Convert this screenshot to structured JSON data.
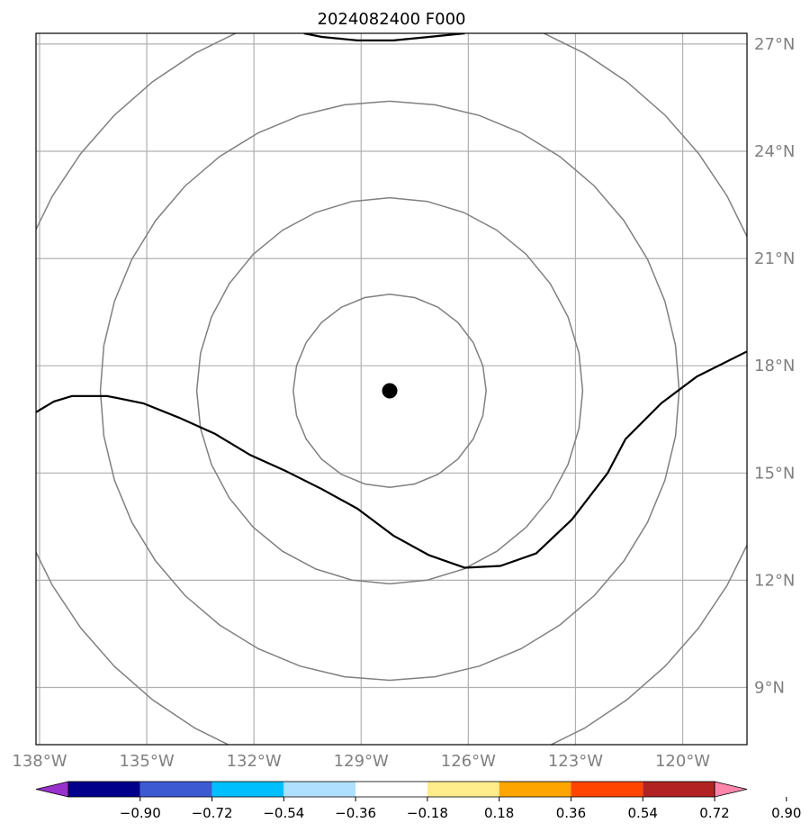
{
  "chart_data": {
    "type": "map",
    "title": "2024082400 F000",
    "lon_ticks": [
      {
        "value": -138,
        "label": "138°W"
      },
      {
        "value": -135,
        "label": "135°W"
      },
      {
        "value": -132,
        "label": "132°W"
      },
      {
        "value": -129,
        "label": "129°W"
      },
      {
        "value": -126,
        "label": "126°W"
      },
      {
        "value": -123,
        "label": "123°W"
      },
      {
        "value": -120,
        "label": "120°W"
      }
    ],
    "lat_ticks": [
      {
        "value": 27,
        "label": "27°N"
      },
      {
        "value": 24,
        "label": "24°N"
      },
      {
        "value": 21,
        "label": "21°N"
      },
      {
        "value": 18,
        "label": "18°N"
      },
      {
        "value": 15,
        "label": "15°N"
      },
      {
        "value": 12,
        "label": "12°N"
      },
      {
        "value": 9,
        "label": "9°N"
      }
    ],
    "lon_range": [
      -138.1,
      -118.2
    ],
    "lat_range": [
      7.4,
      27.3
    ],
    "grid": true,
    "center": {
      "lon": -128.2,
      "lat": 17.3
    },
    "range_rings": [
      {
        "radius_deg": 2.7
      },
      {
        "radius_deg": 5.4
      },
      {
        "radius_deg": 8.1
      },
      {
        "radius_deg": 10.9
      }
    ],
    "track": [
      [
        -138.1,
        16.7
      ],
      [
        -137.6,
        17.0
      ],
      [
        -137.1,
        17.15
      ],
      [
        -136.1,
        17.15
      ],
      [
        -135.1,
        16.95
      ],
      [
        -134.1,
        16.55
      ],
      [
        -133.1,
        16.1
      ],
      [
        -132.1,
        15.5
      ],
      [
        -131.1,
        15.05
      ],
      [
        -130.1,
        14.55
      ],
      [
        -129.1,
        14.0
      ],
      [
        -128.1,
        13.25
      ],
      [
        -127.1,
        12.7
      ],
      [
        -126.1,
        12.35
      ],
      [
        -125.1,
        12.4
      ],
      [
        -124.1,
        12.75
      ],
      [
        -123.1,
        13.7
      ],
      [
        -122.1,
        15.0
      ],
      [
        -121.6,
        15.95
      ],
      [
        -120.6,
        16.95
      ],
      [
        -119.6,
        17.7
      ],
      [
        -118.2,
        18.4
      ]
    ],
    "top_line": [
      [
        -130.6,
        27.3
      ],
      [
        -130.1,
        27.2
      ],
      [
        -129.1,
        27.1
      ],
      [
        -128.1,
        27.1
      ],
      [
        -127.1,
        27.2
      ],
      [
        -126.1,
        27.3
      ]
    ],
    "colorbar": {
      "colors": [
        "#9932cc",
        "#00008b",
        "#3c5ad2",
        "#00bfff",
        "#b0e0ff",
        "#ffffff",
        "#ffec8b",
        "#ffa500",
        "#ff4500",
        "#b22222",
        "#ff85aa"
      ],
      "tick_labels": [
        "−0.90",
        "−0.72",
        "−0.54",
        "−0.36",
        "−0.18",
        "0.18",
        "0.36",
        "0.54",
        "0.72",
        "0.90"
      ]
    }
  }
}
